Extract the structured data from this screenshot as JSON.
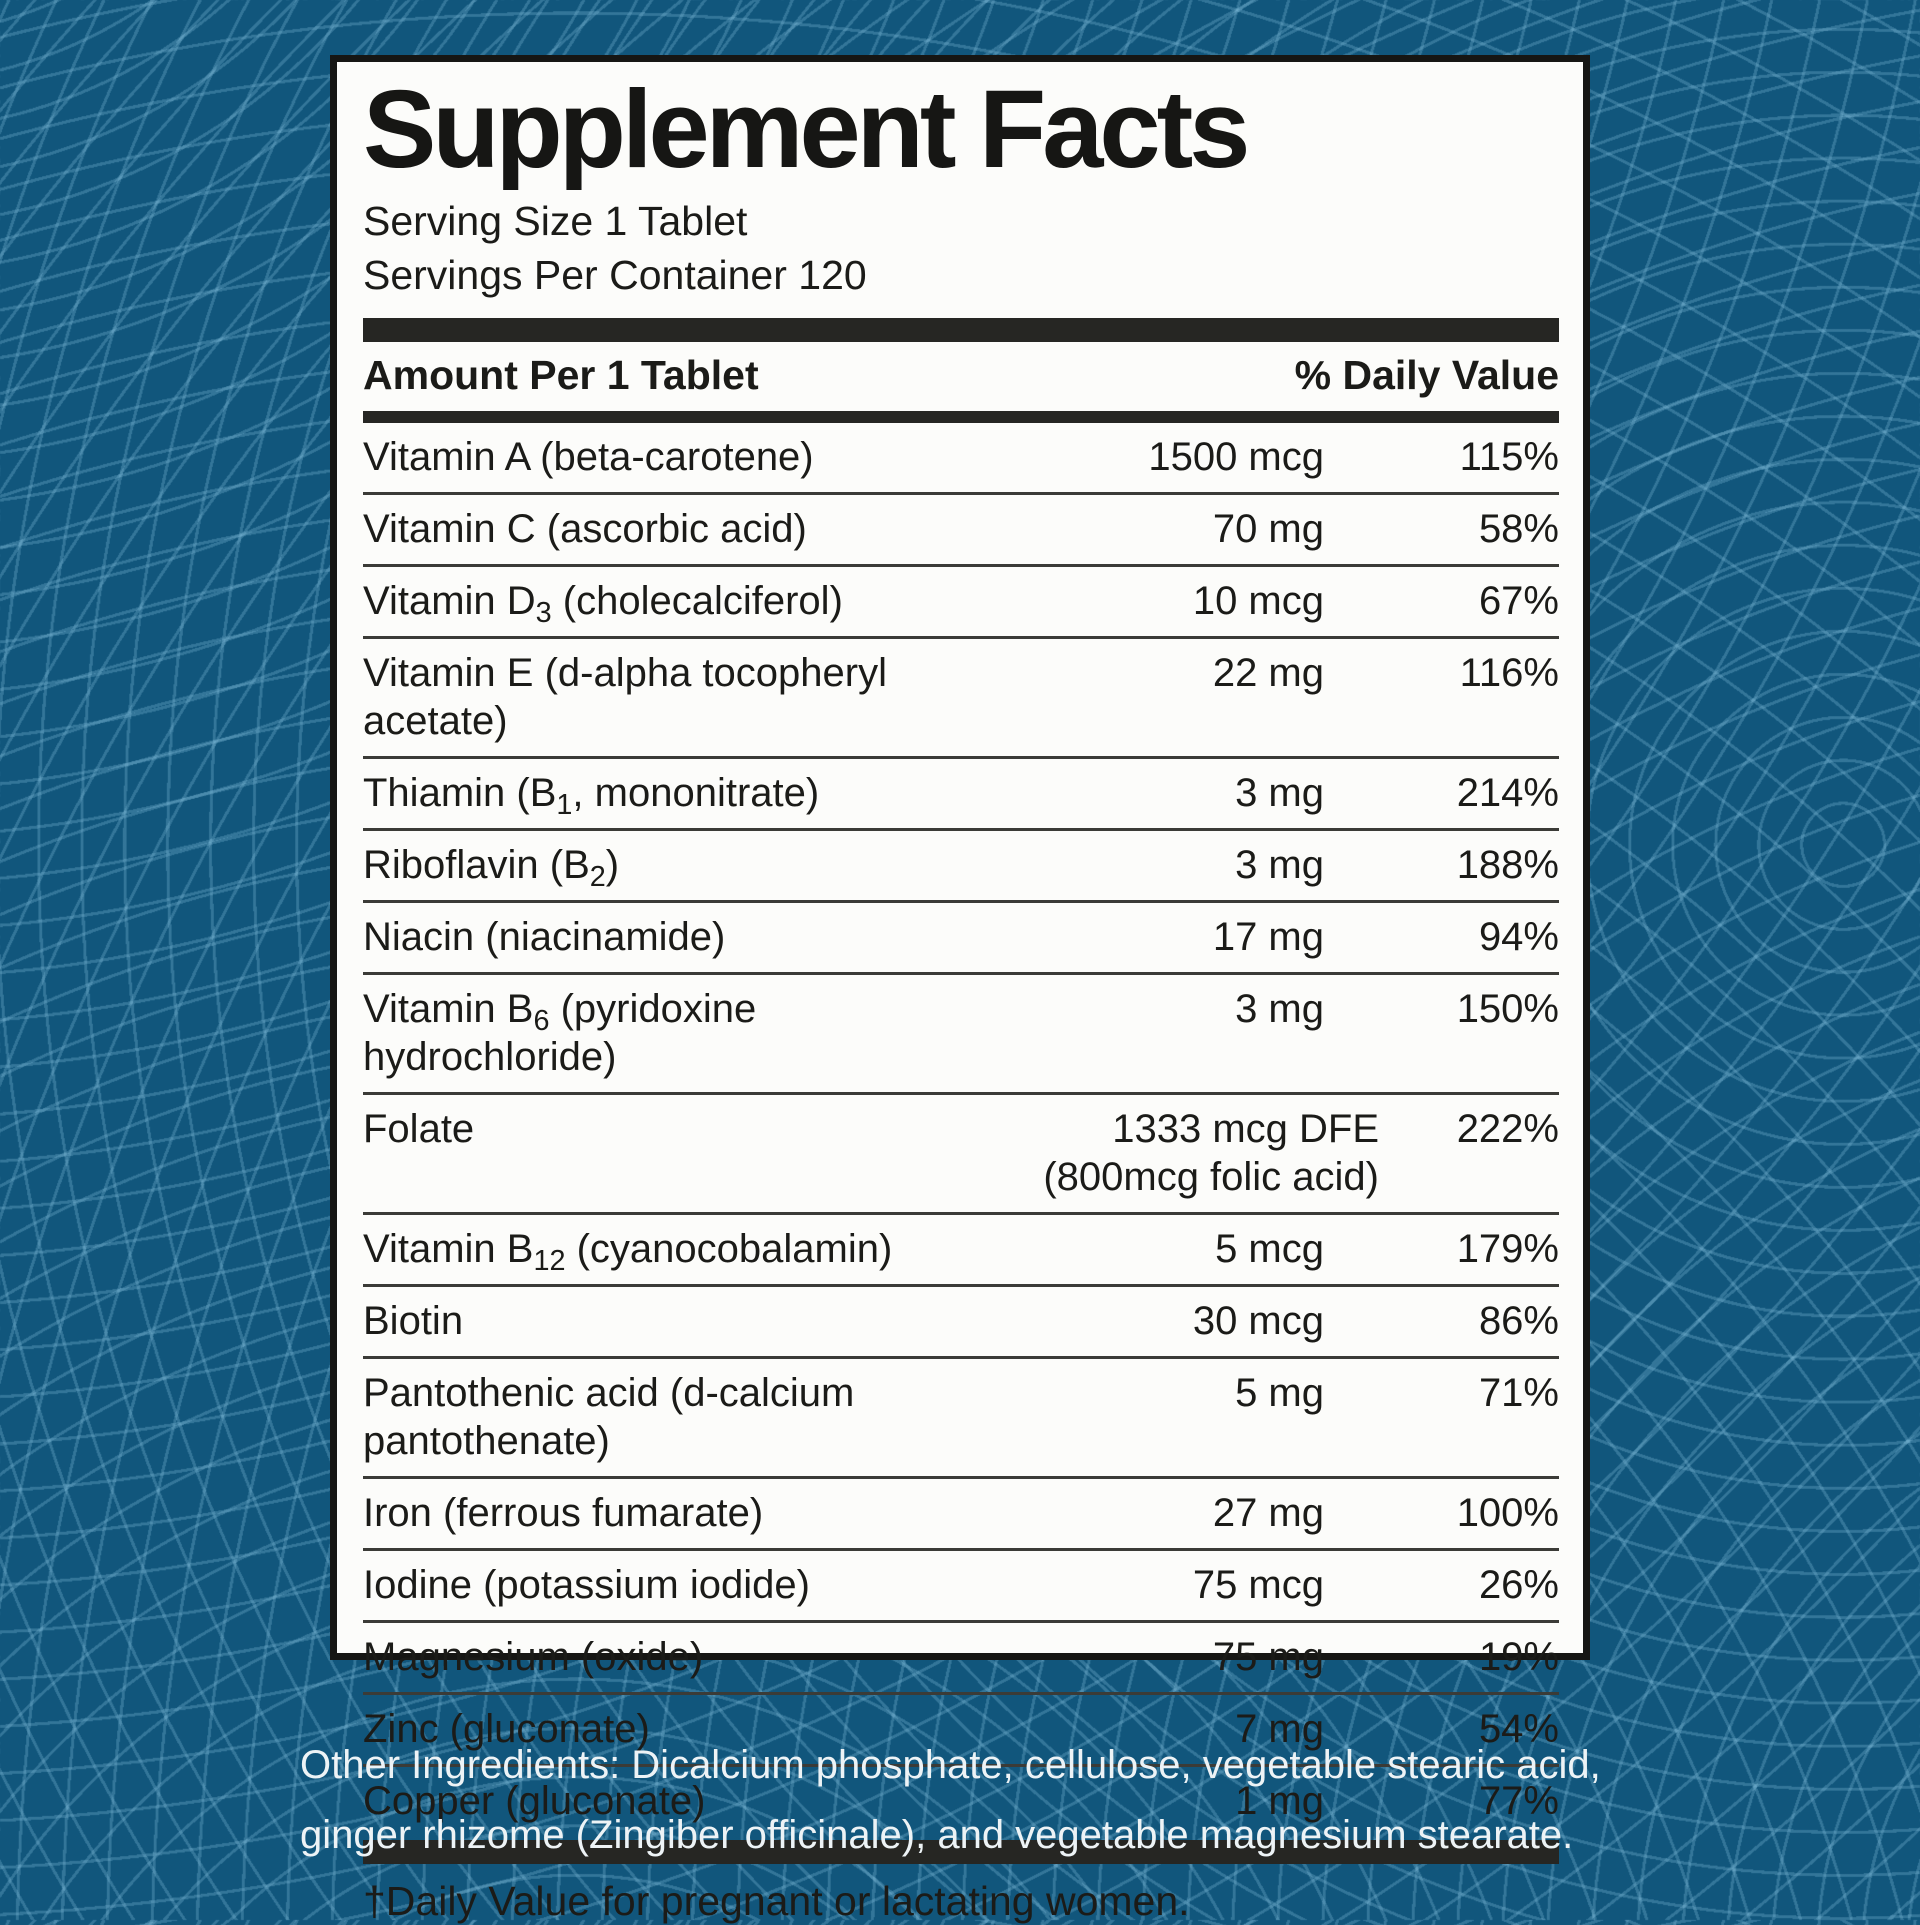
{
  "label": {
    "title": "Supplement Facts",
    "serving_size": "Serving Size 1 Tablet",
    "servings_per_container": "Servings Per Container 120",
    "columns": {
      "left": "Amount Per 1 Tablet",
      "right": "% Daily Value"
    },
    "rows": [
      {
        "name": [
          "Vitamin A (beta-carotene)"
        ],
        "amount": "1500 mcg",
        "dv": "115%"
      },
      {
        "name": [
          "Vitamin C (ascorbic acid)"
        ],
        "amount": "70 mg",
        "dv": "58%"
      },
      {
        "name": [
          "Vitamin D",
          {
            "sub": "3"
          },
          " (cholecalciferol)"
        ],
        "amount": "10 mcg",
        "dv": "67%"
      },
      {
        "name": [
          "Vitamin E (d-alpha tocopheryl acetate)"
        ],
        "amount": "22 mg",
        "dv": "116%"
      },
      {
        "name": [
          "Thiamin (B",
          {
            "sub": "1"
          },
          ", mononitrate)"
        ],
        "amount": "3 mg",
        "dv": "214%"
      },
      {
        "name": [
          "Riboflavin (B",
          {
            "sub": "2"
          },
          ")"
        ],
        "amount": "3 mg",
        "dv": "188%"
      },
      {
        "name": [
          "Niacin (niacinamide)"
        ],
        "amount": "17 mg",
        "dv": "94%"
      },
      {
        "name": [
          "Vitamin B",
          {
            "sub": "6"
          },
          " (pyridoxine hydrochloride)"
        ],
        "amount": "3 mg",
        "dv": "150%"
      },
      {
        "name": [
          "Folate"
        ],
        "amount": "1333 mcg DFE",
        "amount2": "(800mcg folic acid)",
        "dv": "222%",
        "wide": true
      },
      {
        "name": [
          "Vitamin B",
          {
            "sub": "12"
          },
          " (cyanocobalamin)"
        ],
        "amount": "5 mcg",
        "dv": "179%"
      },
      {
        "name": [
          "Biotin"
        ],
        "amount": "30 mcg",
        "dv": "86%"
      },
      {
        "name": [
          "Pantothenic acid (d-calcium pantothenate)"
        ],
        "amount": "5 mg",
        "dv": "71%"
      },
      {
        "name": [
          "Iron (ferrous fumarate)"
        ],
        "amount": "27 mg",
        "dv": "100%"
      },
      {
        "name": [
          "Iodine (potassium iodide)"
        ],
        "amount": "75 mcg",
        "dv": "26%"
      },
      {
        "name": [
          "Magnesium (oxide)"
        ],
        "amount": "75 mg",
        "dv": "19%"
      },
      {
        "name": [
          "Zinc (gluconate)"
        ],
        "amount": "7 mg",
        "dv": "54%"
      },
      {
        "name": [
          "Copper (gluconate)"
        ],
        "amount": "1 mg",
        "dv": "77%"
      }
    ],
    "footnote": "†Daily Value for pregnant or lactating women."
  },
  "other_ingredients": "Other Ingredients: Dicalcium phosphate, cellulose, vegetable stearic acid, ginger rhizome (Zingiber officinale), and vegetable magnesium stearate.",
  "colors": {
    "background": "#11567C",
    "pattern_line": "#2E7294",
    "panel": "#FCFCFA",
    "ink": "#1B1B18",
    "light_text": "#EDF3F6"
  }
}
